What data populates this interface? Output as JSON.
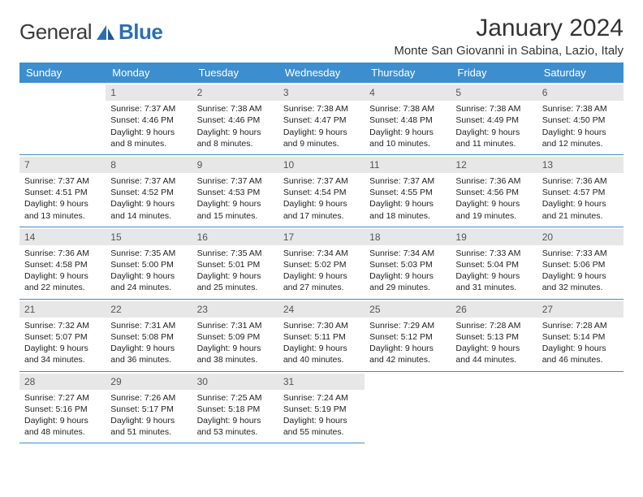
{
  "brand": {
    "part1": "General",
    "part2": "Blue"
  },
  "title": "January 2024",
  "location": "Monte San Giovanni in Sabina, Lazio, Italy",
  "colors": {
    "header_bg": "#3d8ecf",
    "header_fg": "#ffffff",
    "daybar_bg": "#e7e7e7",
    "divider": "#3d8ecf",
    "logo_blue": "#2a6fb5",
    "text": "#222222"
  },
  "weekdays": [
    "Sunday",
    "Monday",
    "Tuesday",
    "Wednesday",
    "Thursday",
    "Friday",
    "Saturday"
  ],
  "first_weekday_index": 1,
  "days": [
    {
      "n": "1",
      "sunrise": "Sunrise: 7:37 AM",
      "sunset": "Sunset: 4:46 PM",
      "daylight": "Daylight: 9 hours and 8 minutes."
    },
    {
      "n": "2",
      "sunrise": "Sunrise: 7:38 AM",
      "sunset": "Sunset: 4:46 PM",
      "daylight": "Daylight: 9 hours and 8 minutes."
    },
    {
      "n": "3",
      "sunrise": "Sunrise: 7:38 AM",
      "sunset": "Sunset: 4:47 PM",
      "daylight": "Daylight: 9 hours and 9 minutes."
    },
    {
      "n": "4",
      "sunrise": "Sunrise: 7:38 AM",
      "sunset": "Sunset: 4:48 PM",
      "daylight": "Daylight: 9 hours and 10 minutes."
    },
    {
      "n": "5",
      "sunrise": "Sunrise: 7:38 AM",
      "sunset": "Sunset: 4:49 PM",
      "daylight": "Daylight: 9 hours and 11 minutes."
    },
    {
      "n": "6",
      "sunrise": "Sunrise: 7:38 AM",
      "sunset": "Sunset: 4:50 PM",
      "daylight": "Daylight: 9 hours and 12 minutes."
    },
    {
      "n": "7",
      "sunrise": "Sunrise: 7:37 AM",
      "sunset": "Sunset: 4:51 PM",
      "daylight": "Daylight: 9 hours and 13 minutes."
    },
    {
      "n": "8",
      "sunrise": "Sunrise: 7:37 AM",
      "sunset": "Sunset: 4:52 PM",
      "daylight": "Daylight: 9 hours and 14 minutes."
    },
    {
      "n": "9",
      "sunrise": "Sunrise: 7:37 AM",
      "sunset": "Sunset: 4:53 PM",
      "daylight": "Daylight: 9 hours and 15 minutes."
    },
    {
      "n": "10",
      "sunrise": "Sunrise: 7:37 AM",
      "sunset": "Sunset: 4:54 PM",
      "daylight": "Daylight: 9 hours and 17 minutes."
    },
    {
      "n": "11",
      "sunrise": "Sunrise: 7:37 AM",
      "sunset": "Sunset: 4:55 PM",
      "daylight": "Daylight: 9 hours and 18 minutes."
    },
    {
      "n": "12",
      "sunrise": "Sunrise: 7:36 AM",
      "sunset": "Sunset: 4:56 PM",
      "daylight": "Daylight: 9 hours and 19 minutes."
    },
    {
      "n": "13",
      "sunrise": "Sunrise: 7:36 AM",
      "sunset": "Sunset: 4:57 PM",
      "daylight": "Daylight: 9 hours and 21 minutes."
    },
    {
      "n": "14",
      "sunrise": "Sunrise: 7:36 AM",
      "sunset": "Sunset: 4:58 PM",
      "daylight": "Daylight: 9 hours and 22 minutes."
    },
    {
      "n": "15",
      "sunrise": "Sunrise: 7:35 AM",
      "sunset": "Sunset: 5:00 PM",
      "daylight": "Daylight: 9 hours and 24 minutes."
    },
    {
      "n": "16",
      "sunrise": "Sunrise: 7:35 AM",
      "sunset": "Sunset: 5:01 PM",
      "daylight": "Daylight: 9 hours and 25 minutes."
    },
    {
      "n": "17",
      "sunrise": "Sunrise: 7:34 AM",
      "sunset": "Sunset: 5:02 PM",
      "daylight": "Daylight: 9 hours and 27 minutes."
    },
    {
      "n": "18",
      "sunrise": "Sunrise: 7:34 AM",
      "sunset": "Sunset: 5:03 PM",
      "daylight": "Daylight: 9 hours and 29 minutes."
    },
    {
      "n": "19",
      "sunrise": "Sunrise: 7:33 AM",
      "sunset": "Sunset: 5:04 PM",
      "daylight": "Daylight: 9 hours and 31 minutes."
    },
    {
      "n": "20",
      "sunrise": "Sunrise: 7:33 AM",
      "sunset": "Sunset: 5:06 PM",
      "daylight": "Daylight: 9 hours and 32 minutes."
    },
    {
      "n": "21",
      "sunrise": "Sunrise: 7:32 AM",
      "sunset": "Sunset: 5:07 PM",
      "daylight": "Daylight: 9 hours and 34 minutes."
    },
    {
      "n": "22",
      "sunrise": "Sunrise: 7:31 AM",
      "sunset": "Sunset: 5:08 PM",
      "daylight": "Daylight: 9 hours and 36 minutes."
    },
    {
      "n": "23",
      "sunrise": "Sunrise: 7:31 AM",
      "sunset": "Sunset: 5:09 PM",
      "daylight": "Daylight: 9 hours and 38 minutes."
    },
    {
      "n": "24",
      "sunrise": "Sunrise: 7:30 AM",
      "sunset": "Sunset: 5:11 PM",
      "daylight": "Daylight: 9 hours and 40 minutes."
    },
    {
      "n": "25",
      "sunrise": "Sunrise: 7:29 AM",
      "sunset": "Sunset: 5:12 PM",
      "daylight": "Daylight: 9 hours and 42 minutes."
    },
    {
      "n": "26",
      "sunrise": "Sunrise: 7:28 AM",
      "sunset": "Sunset: 5:13 PM",
      "daylight": "Daylight: 9 hours and 44 minutes."
    },
    {
      "n": "27",
      "sunrise": "Sunrise: 7:28 AM",
      "sunset": "Sunset: 5:14 PM",
      "daylight": "Daylight: 9 hours and 46 minutes."
    },
    {
      "n": "28",
      "sunrise": "Sunrise: 7:27 AM",
      "sunset": "Sunset: 5:16 PM",
      "daylight": "Daylight: 9 hours and 48 minutes."
    },
    {
      "n": "29",
      "sunrise": "Sunrise: 7:26 AM",
      "sunset": "Sunset: 5:17 PM",
      "daylight": "Daylight: 9 hours and 51 minutes."
    },
    {
      "n": "30",
      "sunrise": "Sunrise: 7:25 AM",
      "sunset": "Sunset: 5:18 PM",
      "daylight": "Daylight: 9 hours and 53 minutes."
    },
    {
      "n": "31",
      "sunrise": "Sunrise: 7:24 AM",
      "sunset": "Sunset: 5:19 PM",
      "daylight": "Daylight: 9 hours and 55 minutes."
    }
  ]
}
